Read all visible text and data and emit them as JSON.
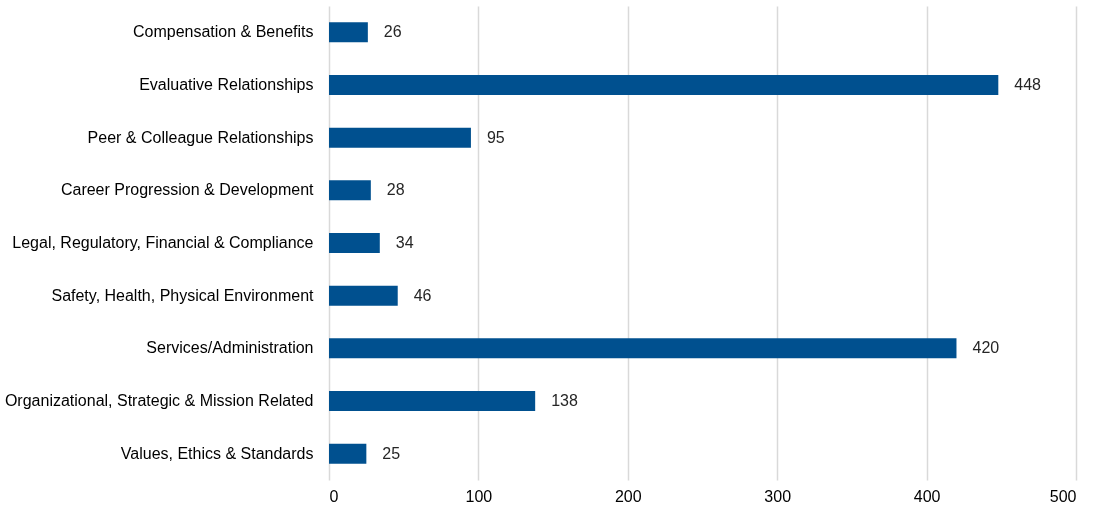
{
  "chart_data": {
    "type": "bar",
    "orientation": "horizontal",
    "categories": [
      "Compensation & Benefits",
      "Evaluative Relationships",
      "Peer & Colleague Relationships",
      "Career Progression & Development",
      "Legal, Regulatory, Financial & Compliance",
      "Safety, Health, Physical Environment",
      "Services/Administration",
      "Organizational, Strategic & Mission Related",
      "Values, Ethics & Standards"
    ],
    "values": [
      26,
      448,
      95,
      28,
      34,
      46,
      420,
      138,
      25
    ],
    "color": "#00508f",
    "xlim": [
      0,
      500
    ],
    "xticks": [
      0,
      100,
      200,
      300,
      400,
      500
    ],
    "grid": "x",
    "data_labels": true
  }
}
